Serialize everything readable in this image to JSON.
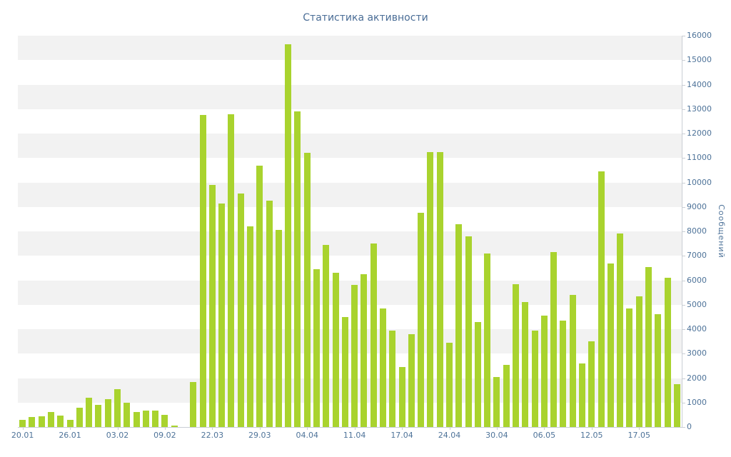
{
  "chart": {
    "title": "Статистика активности",
    "ylabel": "Сообщений"
  },
  "chart_data": {
    "type": "bar",
    "title": "Статистика активности",
    "xlabel": "",
    "ylabel": "Сообщений",
    "ylim": [
      0,
      16000
    ],
    "y_tick_step": 1000,
    "y_ticks": [
      0,
      1000,
      2000,
      3000,
      4000,
      5000,
      6000,
      7000,
      8000,
      9000,
      10000,
      11000,
      12000,
      13000,
      14000,
      15000,
      16000
    ],
    "grid": "alternating-horizontal-bands",
    "legend_position": "none",
    "colors": {
      "bar": "#a9d32e",
      "band": "#f2f2f2",
      "axis": "#c9ced4",
      "text": "#4e7399",
      "title": "#4a6d96",
      "background": "#ffffff"
    },
    "x_tick_labels": [
      {
        "index": 0,
        "label": "20.01"
      },
      {
        "index": 5,
        "label": "26.01"
      },
      {
        "index": 10,
        "label": "03.02"
      },
      {
        "index": 15,
        "label": "09.02"
      },
      {
        "index": 20,
        "label": "22.03"
      },
      {
        "index": 25,
        "label": "29.03"
      },
      {
        "index": 30,
        "label": "04.04"
      },
      {
        "index": 35,
        "label": "11.04"
      },
      {
        "index": 40,
        "label": "17.04"
      },
      {
        "index": 45,
        "label": "24.04"
      },
      {
        "index": 50,
        "label": "30.04"
      },
      {
        "index": 55,
        "label": "06.05"
      },
      {
        "index": 60,
        "label": "12.05"
      },
      {
        "index": 65,
        "label": "17.05"
      }
    ],
    "values": [
      280,
      420,
      430,
      600,
      480,
      300,
      780,
      1200,
      900,
      1150,
      1550,
      1000,
      620,
      680,
      660,
      500,
      60,
      0,
      1850,
      12750,
      9900,
      9150,
      12800,
      9550,
      8200,
      10700,
      9250,
      8050,
      15650,
      12900,
      11200,
      6450,
      7450,
      6300,
      4500,
      5800,
      6250,
      7500,
      4850,
      3950,
      2450,
      3800,
      8750,
      11250,
      11250,
      3450,
      8300,
      7800,
      4300,
      7100,
      2050,
      2550,
      5850,
      5100,
      3950,
      4550,
      7150,
      4350,
      5400,
      2600,
      3500,
      10450,
      6700,
      7900,
      4850,
      5350,
      6550,
      4600,
      6100,
      1750
    ]
  }
}
